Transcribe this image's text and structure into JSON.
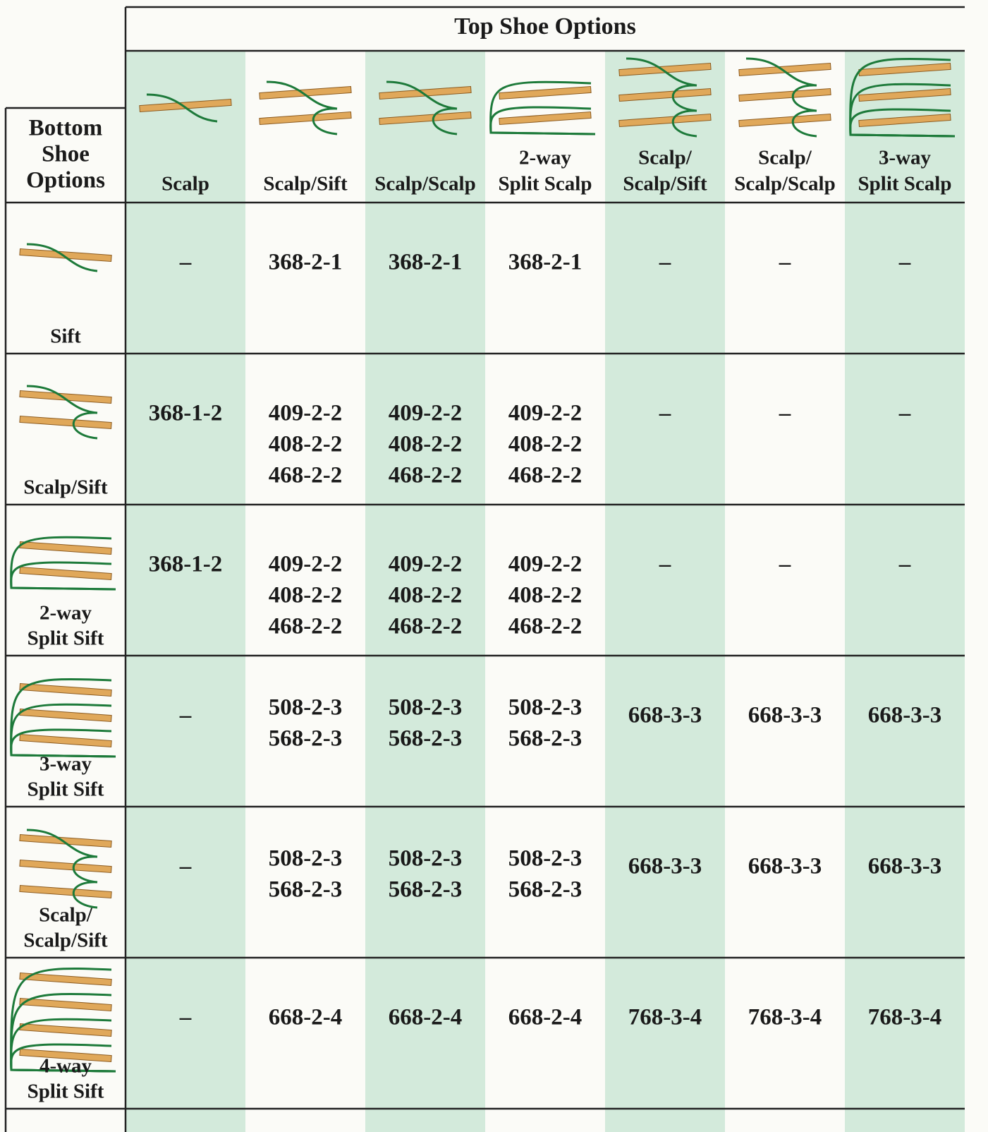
{
  "table": {
    "title": "Top Shoe Options",
    "corner": [
      "Bottom",
      "Shoe",
      "Options"
    ],
    "columns": [
      [
        "Scalp"
      ],
      [
        "Scalp/Sift"
      ],
      [
        "Scalp/Scalp"
      ],
      [
        "2-way",
        "Split Scalp"
      ],
      [
        "Scalp/",
        "Scalp/Sift"
      ],
      [
        "Scalp/",
        "Scalp/Scalp"
      ],
      [
        "3-way",
        "Split Scalp"
      ]
    ],
    "rows": [
      {
        "label": [
          "Sift"
        ],
        "cells": [
          [
            "–"
          ],
          [
            "368-2-1"
          ],
          [
            "368-2-1"
          ],
          [
            "368-2-1"
          ],
          [
            "–"
          ],
          [
            "–"
          ],
          [
            "–"
          ]
        ]
      },
      {
        "label": [
          "Scalp/Sift"
        ],
        "cells": [
          [
            "368-1-2"
          ],
          [
            "409-2-2",
            "408-2-2",
            "468-2-2"
          ],
          [
            "409-2-2",
            "408-2-2",
            "468-2-2"
          ],
          [
            "409-2-2",
            "408-2-2",
            "468-2-2"
          ],
          [
            "–"
          ],
          [
            "–"
          ],
          [
            "–"
          ]
        ]
      },
      {
        "label": [
          "2-way",
          "Split Sift"
        ],
        "cells": [
          [
            "368-1-2"
          ],
          [
            "409-2-2",
            "408-2-2",
            "468-2-2"
          ],
          [
            "409-2-2",
            "408-2-2",
            "468-2-2"
          ],
          [
            "409-2-2",
            "408-2-2",
            "468-2-2"
          ],
          [
            "–"
          ],
          [
            "–"
          ],
          [
            "–"
          ]
        ]
      },
      {
        "label": [
          "3-way",
          "Split Sift"
        ],
        "cells": [
          [
            "–"
          ],
          [
            "508-2-3",
            "568-2-3"
          ],
          [
            "508-2-3",
            "568-2-3"
          ],
          [
            "508-2-3",
            "568-2-3"
          ],
          [
            "668-3-3"
          ],
          [
            "668-3-3"
          ],
          [
            "668-3-3"
          ]
        ]
      },
      {
        "label": [
          "Scalp/",
          "Scalp/Sift"
        ],
        "cells": [
          [
            "–"
          ],
          [
            "508-2-3",
            "568-2-3"
          ],
          [
            "508-2-3",
            "568-2-3"
          ],
          [
            "508-2-3",
            "568-2-3"
          ],
          [
            "668-3-3"
          ],
          [
            "668-3-3"
          ],
          [
            "668-3-3"
          ]
        ]
      },
      {
        "label": [
          "4-way",
          "Split Sift"
        ],
        "cells": [
          [
            "–"
          ],
          [
            "668-2-4"
          ],
          [
            "668-2-4"
          ],
          [
            "668-2-4"
          ],
          [
            "768-3-4"
          ],
          [
            "768-3-4"
          ],
          [
            "768-3-4"
          ]
        ]
      }
    ]
  }
}
